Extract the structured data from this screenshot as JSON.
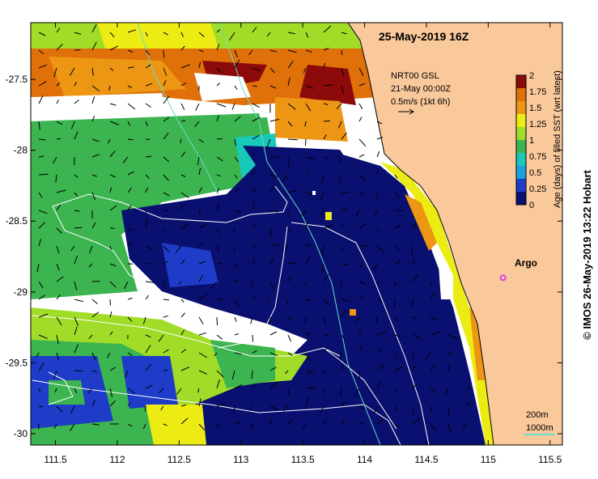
{
  "map": {
    "title": "25-May-2019 16Z",
    "lon_range": [
      111.3,
      115.6
    ],
    "lat_range": [
      -30.08,
      -27.1
    ],
    "x_ticks": [
      "111.5",
      "112",
      "112.5",
      "113",
      "113.5",
      "114",
      "114.5",
      "115",
      "115.5"
    ],
    "y_ticks": [
      "-27.5",
      "-28",
      "-28.5",
      "-29",
      "-29.5",
      "-30"
    ],
    "land_color": "#f9c89b",
    "current_info": {
      "line1": "NRT00 GSL",
      "line2": "21-May 00:00Z",
      "line3": "0.5m/s (1kt 6h)"
    },
    "marker": {
      "label": "Argo",
      "color": "#e040e0",
      "lon": 115.12,
      "lat": -28.9
    },
    "contour_legend": {
      "label1": "200m",
      "label2": "1000m",
      "color": "#66ddcc"
    }
  },
  "colorbar": {
    "label": "Age (days) of filled SST (wrt latest)",
    "ticks": [
      "0",
      "0.25",
      "0.5",
      "0.75",
      "1",
      "1.25",
      "1.5",
      "1.75",
      "2"
    ],
    "colors": [
      "#0a1070",
      "#1e3cc8",
      "#1aa0dc",
      "#18c8b8",
      "#3cb450",
      "#a0dc28",
      "#ecec14",
      "#ec9614",
      "#e0700a",
      "#8c0a0a"
    ]
  },
  "credit": "© IMOS 26-May-2019 13:22 Hobart"
}
